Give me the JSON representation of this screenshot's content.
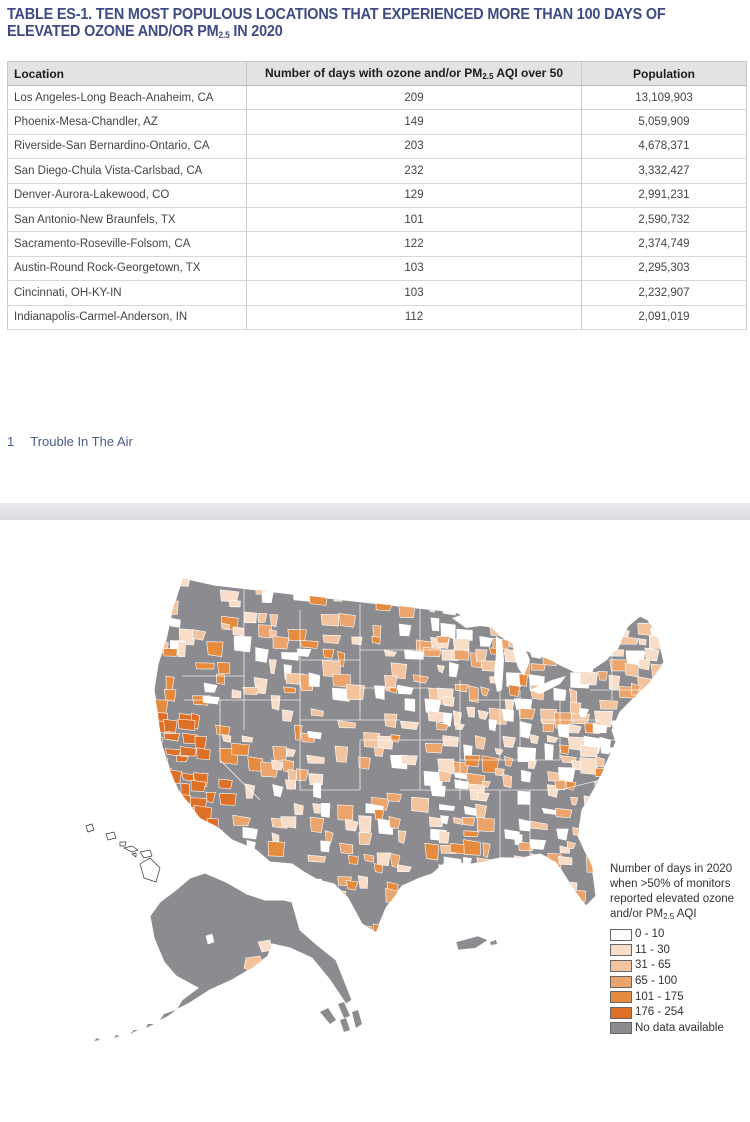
{
  "table": {
    "title_main": "TABLE ES-1. TEN MOST POPULOUS LOCATIONS THAT EXPERIENCED MORE THAN 100 DAYS OF ELEVATED OZONE AND/OR PM",
    "title_sub": "2.5",
    "title_end": " IN 2020",
    "headers": {
      "location": "Location",
      "days_main": "Number of days with ozone and/or PM",
      "days_sub": "2.5",
      "days_end": " AQI over 50",
      "population": "Population"
    },
    "rows": [
      {
        "location": "Los Angeles-Long Beach-Anaheim, CA",
        "days": "209",
        "population": "13,109,903"
      },
      {
        "location": "Phoenix-Mesa-Chandler, AZ",
        "days": "149",
        "population": "5,059,909"
      },
      {
        "location": "Riverside-San Bernardino-Ontario, CA",
        "days": "203",
        "population": "4,678,371"
      },
      {
        "location": "San Diego-Chula Vista-Carlsbad, CA",
        "days": "232",
        "population": "3,332,427"
      },
      {
        "location": "Denver-Aurora-Lakewood, CO",
        "days": "129",
        "population": "2,991,231"
      },
      {
        "location": "San Antonio-New Braunfels, TX",
        "days": "101",
        "population": "2,590,732"
      },
      {
        "location": "Sacramento-Roseville-Folsom, CA",
        "days": "122",
        "population": "2,374,749"
      },
      {
        "location": "Austin-Round Rock-Georgetown, TX",
        "days": "103",
        "population": "2,295,303"
      },
      {
        "location": "Cincinnati, OH-KY-IN",
        "days": "103",
        "population": "2,232,907"
      },
      {
        "location": "Indianapolis-Carmel-Anderson, IN",
        "days": "112",
        "population": "2,091,019"
      }
    ]
  },
  "footer": {
    "page_number": "1",
    "publication": "Trouble In The Air"
  },
  "map": {
    "legend": {
      "title_main": "Number of days in 2020 when >50% of monitors reported elevated ozone and/or PM",
      "title_sub": "2.5",
      "title_end": " AQI",
      "items": [
        {
          "label": "0 - 10",
          "color": "#ffffff"
        },
        {
          "label": "11 - 30",
          "color": "#f8ddc8"
        },
        {
          "label": "31 - 65",
          "color": "#f2c39c"
        },
        {
          "label": "65 - 100",
          "color": "#eba46b"
        },
        {
          "label": "101 - 175",
          "color": "#e68a3e"
        },
        {
          "label": "176 - 254",
          "color": "#de6f26"
        },
        {
          "label": "No data available",
          "color": "#8c8c90"
        }
      ]
    }
  }
}
